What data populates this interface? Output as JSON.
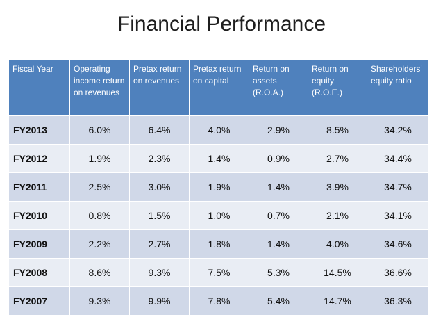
{
  "title": "Financial Performance",
  "table": {
    "headers": [
      "Fiscal Year",
      "Operating income return on revenues",
      "Pretax return on revenues",
      "Pretax return on capital",
      "Return on assets (R.O.A.)",
      "Return on equity (R.O.E.)",
      "Shareholders' equity ratio"
    ],
    "rows": [
      [
        "FY2013",
        "6.0%",
        "6.4%",
        "4.0%",
        "2.9%",
        "8.5%",
        "34.2%"
      ],
      [
        "FY2012",
        "1.9%",
        "2.3%",
        "1.4%",
        "0.9%",
        "2.7%",
        "34.4%"
      ],
      [
        "FY2011",
        "2.5%",
        "3.0%",
        "1.9%",
        "1.4%",
        "3.9%",
        "34.7%"
      ],
      [
        "FY2010",
        "0.8%",
        "1.5%",
        "1.0%",
        "0.7%",
        "2.1%",
        "34.1%"
      ],
      [
        "FY2009",
        "2.2%",
        "2.7%",
        "1.8%",
        "1.4%",
        "4.0%",
        "34.6%"
      ],
      [
        "FY2008",
        "8.6%",
        "9.3%",
        "7.5%",
        "5.3%",
        "14.5%",
        "36.6%"
      ],
      [
        "FY2007",
        "9.3%",
        "9.9%",
        "7.8%",
        "5.4%",
        "14.7%",
        "36.3%"
      ]
    ]
  },
  "colors": {
    "header_bg": "#4f81bd",
    "row_odd": "#d0d8e8",
    "row_even": "#e9edf4"
  }
}
